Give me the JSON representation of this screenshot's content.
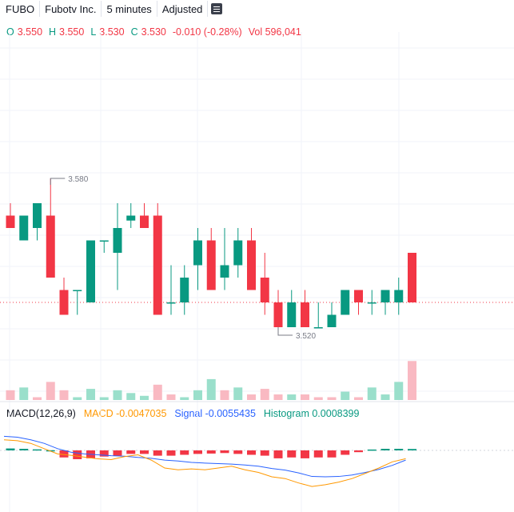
{
  "header": {
    "symbol": "FUBO",
    "name": "Fubotv Inc.",
    "interval": "5 minutes",
    "adjustment": "Adjusted"
  },
  "ohlc": {
    "o_label": "O",
    "o_value": "3.550",
    "h_label": "H",
    "h_value": "3.550",
    "l_label": "L",
    "l_value": "3.530",
    "c_label": "C",
    "c_value": "3.530",
    "change": "-0.010 (-0.28%)",
    "vol_label": "Vol",
    "vol_value": "596,041"
  },
  "macd_header": {
    "name": "MACD(12,26,9)",
    "macd_label": "MACD",
    "macd_value": "-0.0047035",
    "signal_label": "Signal",
    "signal_value": "-0.0055435",
    "hist_label": "Histogram",
    "hist_value": "0.0008399"
  },
  "colors": {
    "up": "#089981",
    "down": "#f23645",
    "up_volume": "#9adfcb",
    "down_volume": "#f9b9c2",
    "macd_line": "#ff9800",
    "signal_line": "#2962ff",
    "up_hist": "#089981",
    "down_hist": "#f23645",
    "grid": "#f0f3fa",
    "last_price_line": "#f23645"
  },
  "chart_data": {
    "type": "candlestick",
    "markers": {
      "high": "3.580",
      "low": "3.520"
    },
    "candles": [
      {
        "o": 3.565,
        "h": 3.57,
        "l": 3.56,
        "c": 3.56
      },
      {
        "o": 3.555,
        "h": 3.565,
        "l": 3.555,
        "c": 3.565
      },
      {
        "o": 3.56,
        "h": 3.57,
        "l": 3.555,
        "c": 3.57
      },
      {
        "o": 3.565,
        "h": 3.58,
        "l": 3.54,
        "c": 3.54
      },
      {
        "o": 3.535,
        "h": 3.54,
        "l": 3.525,
        "c": 3.525
      },
      {
        "o": 3.535,
        "h": 3.535,
        "l": 3.525,
        "c": 3.535
      },
      {
        "o": 3.53,
        "h": 3.555,
        "l": 3.53,
        "c": 3.555
      },
      {
        "o": 3.555,
        "h": 3.555,
        "l": 3.55,
        "c": 3.555
      },
      {
        "o": 3.55,
        "h": 3.57,
        "l": 3.535,
        "c": 3.56
      },
      {
        "o": 3.563,
        "h": 3.57,
        "l": 3.56,
        "c": 3.565
      },
      {
        "o": 3.565,
        "h": 3.57,
        "l": 3.56,
        "c": 3.56
      },
      {
        "o": 3.565,
        "h": 3.57,
        "l": 3.525,
        "c": 3.525
      },
      {
        "o": 3.53,
        "h": 3.545,
        "l": 3.525,
        "c": 3.53
      },
      {
        "o": 3.53,
        "h": 3.545,
        "l": 3.525,
        "c": 3.54
      },
      {
        "o": 3.545,
        "h": 3.56,
        "l": 3.535,
        "c": 3.555
      },
      {
        "o": 3.555,
        "h": 3.56,
        "l": 3.535,
        "c": 3.535
      },
      {
        "o": 3.54,
        "h": 3.56,
        "l": 3.535,
        "c": 3.545
      },
      {
        "o": 3.545,
        "h": 3.56,
        "l": 3.54,
        "c": 3.555
      },
      {
        "o": 3.555,
        "h": 3.56,
        "l": 3.535,
        "c": 3.535
      },
      {
        "o": 3.54,
        "h": 3.55,
        "l": 3.525,
        "c": 3.53
      },
      {
        "o": 3.53,
        "h": 3.535,
        "l": 3.52,
        "c": 3.52
      },
      {
        "o": 3.52,
        "h": 3.535,
        "l": 3.52,
        "c": 3.53
      },
      {
        "o": 3.53,
        "h": 3.535,
        "l": 3.52,
        "c": 3.52
      },
      {
        "o": 3.52,
        "h": 3.53,
        "l": 3.52,
        "c": 3.52
      },
      {
        "o": 3.52,
        "h": 3.53,
        "l": 3.52,
        "c": 3.525
      },
      {
        "o": 3.525,
        "h": 3.535,
        "l": 3.525,
        "c": 3.535
      },
      {
        "o": 3.535,
        "h": 3.535,
        "l": 3.525,
        "c": 3.53
      },
      {
        "o": 3.53,
        "h": 3.535,
        "l": 3.525,
        "c": 3.53
      },
      {
        "o": 3.53,
        "h": 3.535,
        "l": 3.525,
        "c": 3.535
      },
      {
        "o": 3.53,
        "h": 3.54,
        "l": 3.525,
        "c": 3.535
      },
      {
        "o": 3.55,
        "h": 3.55,
        "l": 3.53,
        "c": 3.53
      }
    ],
    "volume": [
      {
        "v": 0.35,
        "up": false
      },
      {
        "v": 0.45,
        "up": true
      },
      {
        "v": 0.1,
        "up": false
      },
      {
        "v": 0.65,
        "up": false
      },
      {
        "v": 0.35,
        "up": false
      },
      {
        "v": 0.1,
        "up": true
      },
      {
        "v": 0.4,
        "up": true
      },
      {
        "v": 0.1,
        "up": true
      },
      {
        "v": 0.35,
        "up": true
      },
      {
        "v": 0.25,
        "up": true
      },
      {
        "v": 0.15,
        "up": true
      },
      {
        "v": 0.55,
        "up": false
      },
      {
        "v": 0.2,
        "up": false
      },
      {
        "v": 0.1,
        "up": true
      },
      {
        "v": 0.35,
        "up": true
      },
      {
        "v": 0.75,
        "up": true
      },
      {
        "v": 0.35,
        "up": false
      },
      {
        "v": 0.45,
        "up": true
      },
      {
        "v": 0.2,
        "up": false
      },
      {
        "v": 0.4,
        "up": false
      },
      {
        "v": 0.2,
        "up": false
      },
      {
        "v": 0.2,
        "up": true
      },
      {
        "v": 0.2,
        "up": false
      },
      {
        "v": 0.1,
        "up": false
      },
      {
        "v": 0.1,
        "up": false
      },
      {
        "v": 0.3,
        "up": true
      },
      {
        "v": 0.1,
        "up": false
      },
      {
        "v": 0.45,
        "up": true
      },
      {
        "v": 0.2,
        "up": true
      },
      {
        "v": 0.65,
        "up": true
      },
      {
        "v": 1.4,
        "up": false
      }
    ],
    "macd": {
      "histogram": [
        0.0011,
        0.0009,
        0.0006,
        0.0001,
        -0.004,
        -0.005,
        -0.0045,
        -0.0035,
        -0.003,
        -0.002,
        -0.002,
        -0.003,
        -0.003,
        -0.0025,
        -0.002,
        -0.0018,
        -0.0015,
        -0.002,
        -0.0025,
        -0.003,
        -0.0045,
        -0.004,
        -0.0045,
        -0.004,
        -0.004,
        -0.0025,
        -0.001,
        0.0005,
        0.0009,
        0.0009,
        0.0008
      ],
      "macd": [
        0.006,
        0.0055,
        0.004,
        0.001,
        -0.002,
        -0.0028,
        -0.0038,
        -0.0048,
        -0.0052,
        -0.0035,
        -0.0025,
        -0.0055,
        -0.01,
        -0.011,
        -0.0105,
        -0.011,
        -0.01,
        -0.009,
        -0.011,
        -0.0125,
        -0.015,
        -0.016,
        -0.0185,
        -0.0205,
        -0.0195,
        -0.018,
        -0.016,
        -0.013,
        -0.01,
        -0.0065,
        -0.0047
      ],
      "signal": [
        0.008,
        0.0075,
        0.006,
        0.004,
        0.001,
        -0.001,
        -0.002,
        -0.0025,
        -0.003,
        -0.0033,
        -0.004,
        -0.0045,
        -0.0055,
        -0.006,
        -0.0068,
        -0.0072,
        -0.0075,
        -0.0078,
        -0.0083,
        -0.009,
        -0.0103,
        -0.0112,
        -0.0128,
        -0.0148,
        -0.015,
        -0.0148,
        -0.014,
        -0.0125,
        -0.0108,
        -0.0085,
        -0.0055
      ]
    }
  }
}
